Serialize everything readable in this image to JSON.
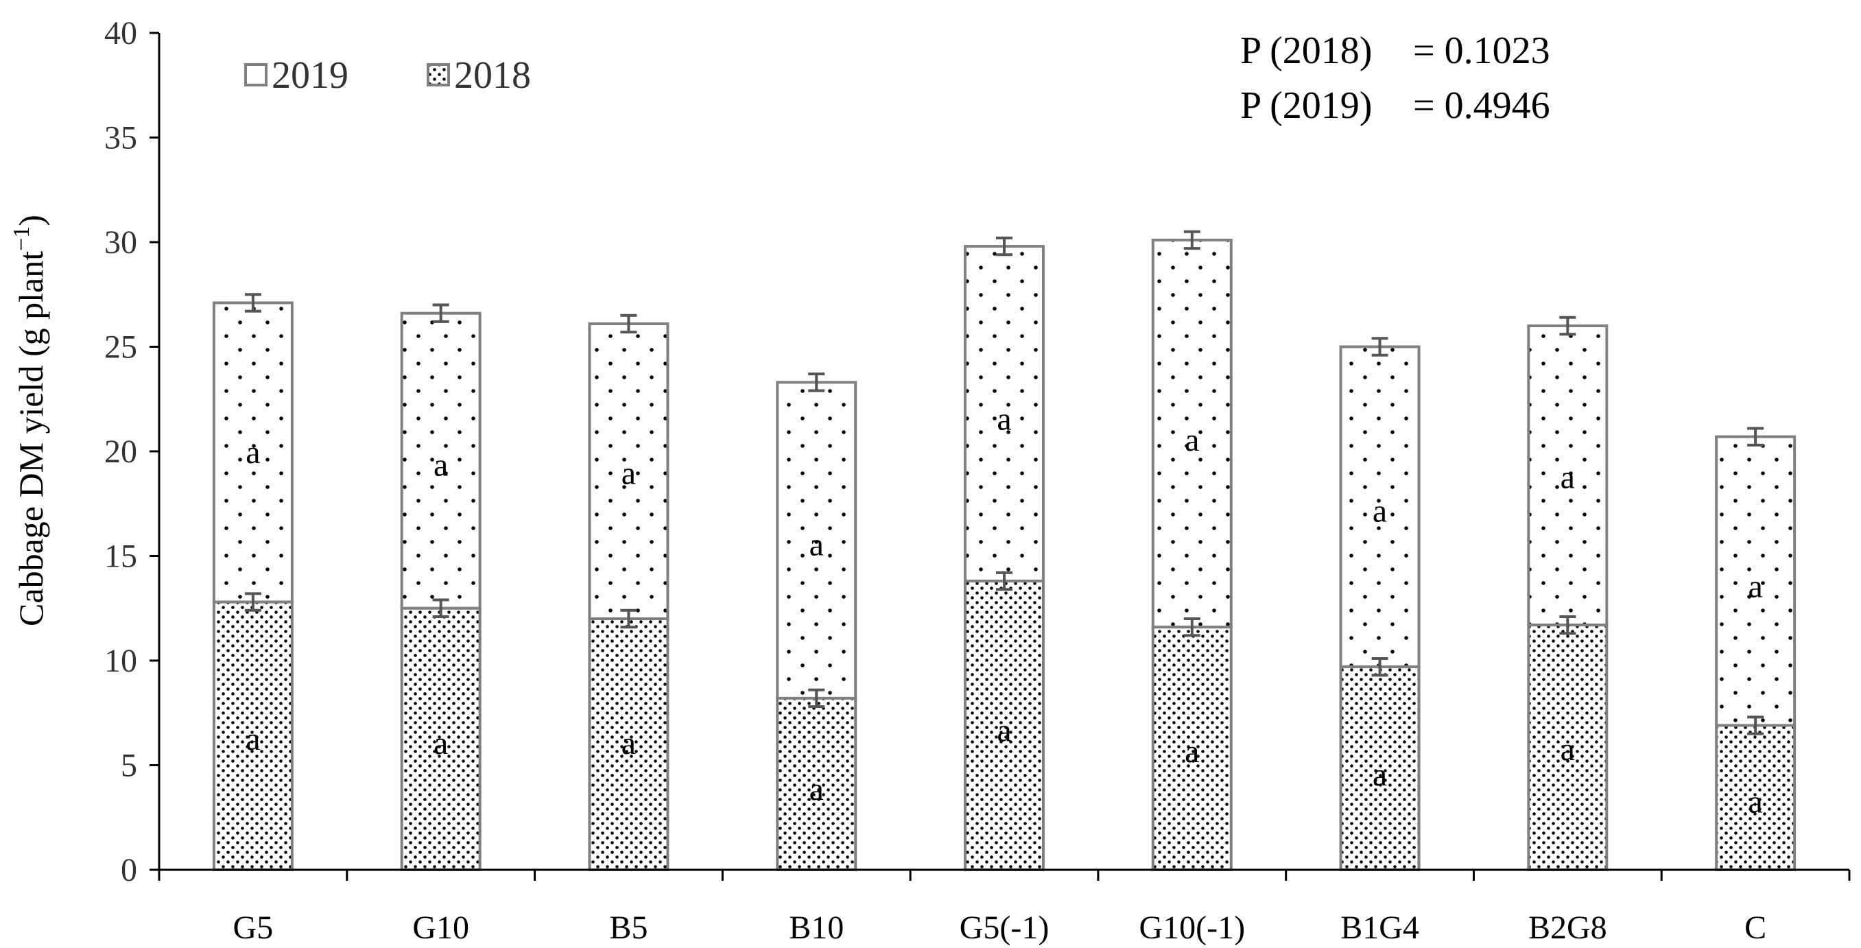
{
  "chart_data": {
    "type": "bar",
    "stacked": true,
    "categories": [
      "G5",
      "G10",
      "B5",
      "B10",
      "G5(-1)",
      "G10(-1)",
      "B1G4",
      "B2G8",
      "C"
    ],
    "series": [
      {
        "name": "2018",
        "pattern": "dense-dots",
        "values": [
          12.8,
          12.5,
          12.0,
          8.2,
          13.8,
          11.6,
          9.7,
          11.7,
          6.9
        ],
        "error": [
          0.4,
          0.4,
          0.4,
          0.4,
          0.4,
          0.4,
          0.4,
          0.4,
          0.4
        ],
        "letters": [
          "a",
          "a",
          "a",
          "a",
          "a",
          "a",
          "a",
          "a",
          "a"
        ],
        "letter_positions": [
          6.2,
          6.0,
          6.0,
          3.8,
          6.6,
          5.6,
          4.5,
          5.7,
          3.2
        ]
      },
      {
        "name": "2019",
        "pattern": "sparse-dots",
        "totals": [
          27.1,
          26.6,
          26.1,
          23.3,
          29.8,
          30.1,
          25.0,
          26.0,
          20.7
        ],
        "error": [
          0.4,
          0.4,
          0.4,
          0.4,
          0.4,
          0.4,
          0.4,
          0.4,
          0.4
        ],
        "letters": [
          "a",
          "a",
          "a",
          "a",
          "a",
          "a",
          "a",
          "a",
          "a"
        ],
        "letter_positions": [
          19.9,
          19.3,
          18.9,
          15.5,
          21.5,
          20.5,
          17.1,
          18.7,
          13.5
        ]
      }
    ],
    "title": "",
    "xlabel": "",
    "ylabel": "Cabbage DM yield (g plant",
    "ylabel_superscript": "−1",
    "ylabel_close": ")",
    "ylim": [
      0,
      40
    ],
    "yticks": [
      0,
      5,
      10,
      15,
      20,
      25,
      30,
      35,
      40
    ],
    "grid": false,
    "legend": {
      "placement": "top-left",
      "entries": [
        "2019",
        "2018"
      ]
    },
    "annotations": [
      {
        "label": "P (2018)",
        "value": "= 0.1023"
      },
      {
        "label": "P (2019)",
        "value": "= 0.4946"
      }
    ]
  },
  "colors": {
    "bar_outline": "#808080",
    "axis": "#000000",
    "dot": "#000000"
  }
}
